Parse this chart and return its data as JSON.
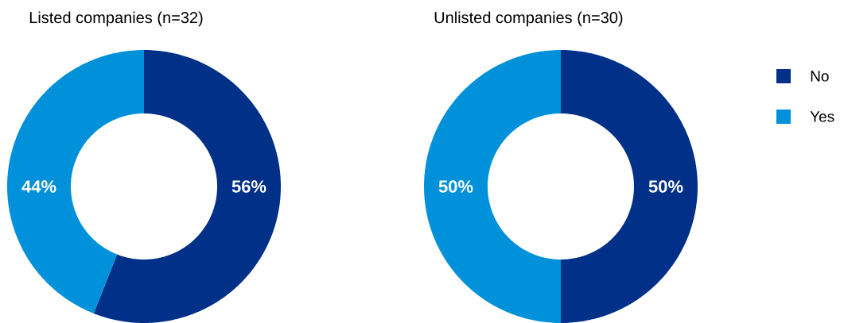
{
  "chart_data": [
    {
      "type": "donut",
      "title": "Listed companies (n=32)",
      "categories": [
        null,
        null
      ],
      "values": [
        56,
        44
      ],
      "value_labels": [
        "56%",
        "44%"
      ],
      "colors": [
        "#003087",
        "#0091da"
      ]
    },
    {
      "type": "donut",
      "title": "Unlisted companies (n=30)",
      "categories": [
        "No",
        "Yes"
      ],
      "values": [
        50,
        50
      ],
      "value_labels": [
        "50%",
        "50%"
      ],
      "colors": [
        "#003087",
        "#0091da"
      ],
      "legend": "right"
    }
  ]
}
